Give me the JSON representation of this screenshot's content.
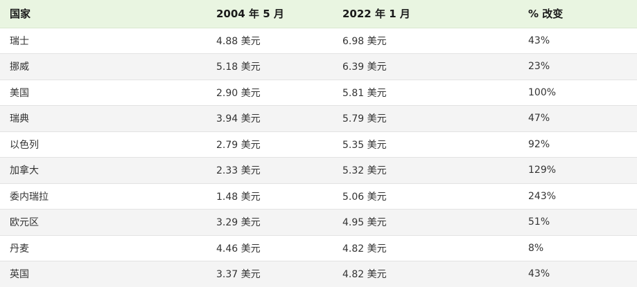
{
  "table": {
    "headers": [
      "国家",
      "2004 年 5 月",
      "2022 年 1 月",
      "% 改变"
    ],
    "rows": [
      [
        "瑞士",
        "4.88 美元",
        "6.98 美元",
        "43%"
      ],
      [
        "挪威",
        "5.18 美元",
        "6.39 美元",
        "23%"
      ],
      [
        "美国",
        "2.90 美元",
        "5.81 美元",
        "100%"
      ],
      [
        "瑞典",
        "3.94 美元",
        "5.79 美元",
        "47%"
      ],
      [
        "以色列",
        "2.79 美元",
        "5.35 美元",
        "92%"
      ],
      [
        "加拿大",
        "2.33 美元",
        "5.32 美元",
        "129%"
      ],
      [
        "委内瑞拉",
        "1.48 美元",
        "5.06 美元",
        "243%"
      ],
      [
        "欧元区",
        "3.29 美元",
        "4.95 美元",
        "51%"
      ],
      [
        "丹麦",
        "4.46 美元",
        "4.82 美元",
        "8%"
      ],
      [
        "英国",
        "3.37 美元",
        "4.82 美元",
        "43%"
      ]
    ]
  },
  "colors": {
    "header_bg": "#e9f5e1",
    "stripe_bg": "#f4f4f4",
    "row_bg": "#ffffff"
  }
}
